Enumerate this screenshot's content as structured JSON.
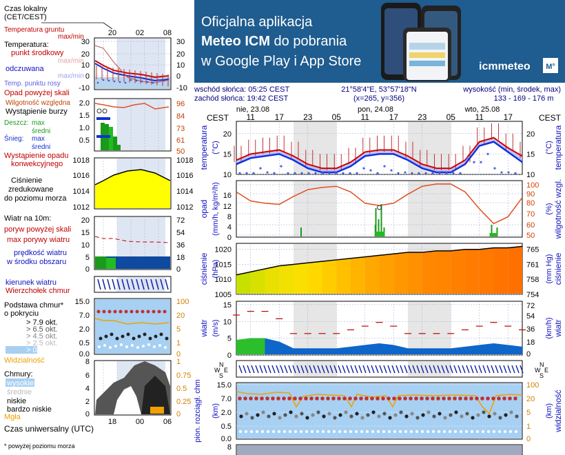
{
  "banner": {
    "line1": "Oficjalna aplikacja",
    "line2_bold": "Meteo ICM",
    "line2_rest": " do pobrania",
    "line3": "w Google Play i App Store",
    "logo": "icmmeteo",
    "logo_badge": "M°",
    "bg_color": "#1f5c8f"
  },
  "info": {
    "sunrise": "wschód słońca: 05:25 CEST",
    "sunset": "zachód słońca: 19:42 CEST",
    "coords": "21°58'4\"E, 53°57'18\"N",
    "grid": "(x=265, y=356)",
    "height_label": "wysokość (min, środek, max)",
    "height_values": "133 - 169 - 176 m"
  },
  "legend": {
    "local_time": "Czas lokalny (CET/CEST)",
    "local_ticks": [
      "20",
      "02",
      "08"
    ],
    "utc_ticks": [
      "18",
      "00",
      "06"
    ],
    "utc_label": "Czas uniwersalny (UTC)",
    "footnote": "* powyżej poziomu morza",
    "temp_ground": "Temperatura gruntu",
    "temp_ground_2": "max/min",
    "temp_title": "Temperatura:",
    "temp_mid": "punkt środkowy",
    "temp_mid_2": "max/min",
    "temp_feel": "odczuwana",
    "temp_feel_2": "max/min",
    "temp_dew": "Temp. punktu rosy",
    "temp_left_ticks": [
      "30",
      "20",
      "10",
      "0",
      "-10"
    ],
    "temp_right_ticks": [
      "30",
      "20",
      "10",
      "0",
      "-10"
    ],
    "precip_above": "Opad powyżej skali",
    "humidity": "Wilgotność względna",
    "storm": "Wystąpienie burzy",
    "rain": "Deszcz:",
    "rain_max": "max",
    "rain_mean": "średni",
    "snow": "Śnieg:",
    "snow_max": "max",
    "snow_mean": "średni",
    "convective": "Wystąpienie opadu",
    "convective_2": "konwekcyjnego",
    "precip_left_ticks": [
      "2.0",
      "1.5",
      "1.0",
      "0.5"
    ],
    "precip_right_ticks": [
      "96",
      "84",
      "73",
      "61",
      "50"
    ],
    "pressure_l1": "Ciśnienie",
    "pressure_l2": "zredukowane",
    "pressure_l3": "do poziomu morza",
    "pressure_left_ticks": [
      "1018",
      "1016",
      "1014",
      "1012"
    ],
    "pressure_right_ticks": [
      "1018",
      "1016",
      "1014",
      "1012"
    ],
    "wind_title": "Wiatr na 10m:",
    "gust_above": "poryw powyżej skali",
    "gust_max": "max porywy wiatru",
    "wind_speed": "prędkość wiatru",
    "wind_speed_2": "w środku obszaru",
    "wind_left_ticks": [
      "20",
      "15",
      "10",
      "5",
      "0"
    ],
    "wind_right_ticks": [
      "72",
      "54",
      "36",
      "18",
      "0"
    ],
    "wind_dir": "kierunek wiatru",
    "cloud_top": "Wierzchołek chmur",
    "cloud_base": "Podstawa chmur*",
    "cloud_base_2": "o pokryciu",
    "okt": [
      "> 7.9 okt.",
      "> 6.5 okt.",
      "> 4.5 okt.",
      "> 2.5 okt.",
      "> 0.1 okt."
    ],
    "cloudbase_left_ticks": [
      "15.0",
      "7.0",
      "2.0",
      "0.5",
      "0.0"
    ],
    "cloudbase_right_ticks": [
      "100",
      "20",
      "5",
      "1",
      "0"
    ],
    "visibility": "Widzialność",
    "clouds": "Chmury:",
    "cl_high": "wysokie",
    "cl_mid": "średnie",
    "cl_low": "niskie",
    "cl_vlow": "bardzo niskie",
    "fog": "Mgła",
    "clouds_left_ticks": [
      "8",
      "6",
      "4",
      "2",
      "0"
    ],
    "clouds_right_ticks": [
      "1",
      "0.75",
      "0.5",
      "0.25",
      "0"
    ]
  },
  "main": {
    "day_labels": [
      "nie, 23.08",
      "pon, 24.08",
      "wto, 25.08"
    ],
    "cest": "CEST",
    "hour_ticks": [
      "11",
      "17",
      "23",
      "05",
      "11",
      "17",
      "23",
      "05",
      "11",
      "17"
    ],
    "temp_ylabel": "temperatura",
    "temp_unit": "(°C)",
    "temp_ticks": [
      "20",
      "15",
      "10"
    ],
    "precip_ylabel": "opad",
    "precip_unit": "(mm/h, kg/m²/h)",
    "precip_ticks": [
      "16",
      "12",
      "8",
      "4",
      "0"
    ],
    "humid_ylabel": "wilgotność wzgl.",
    "humid_unit": "(%)",
    "humid_ticks": [
      "100",
      "90",
      "80",
      "70",
      "60",
      "50"
    ],
    "press_ylabel": "ciśnienie",
    "press_unit": "(hPa)",
    "press_ticks": [
      "1020",
      "1015",
      "1010",
      "1005"
    ],
    "press_right_unit": "(mm Hg)",
    "press_right_ticks": [
      "765",
      "761",
      "758",
      "754"
    ],
    "wind_ylabel": "wiatr",
    "wind_unit": "(m/s)",
    "wind_ticks": [
      "15",
      "10",
      "5",
      "0"
    ],
    "wind_right_unit": "(km/h)",
    "wind_right_ticks": [
      "72",
      "54",
      "36",
      "18",
      "0"
    ],
    "compass": [
      "N",
      "W",
      "E",
      "S"
    ],
    "cb_ylabel": "pion. rozciągł. chm",
    "cb_unit": "(km)",
    "cb_ticks": [
      "15.0",
      "7.0",
      "2.0",
      "0.5",
      "0.0"
    ],
    "vis_ylabel": "widzialność",
    "vis_unit": "(km)",
    "vis_ticks": [
      "100",
      "20",
      "5",
      "1",
      "0"
    ],
    "bottom_tick": "8"
  },
  "chart_data": {
    "type": "line",
    "x": [
      "23.08 08:00",
      "23.08 11:00",
      "23.08 14:00",
      "23.08 17:00",
      "23.08 20:00",
      "23.08 23:00",
      "24.08 02:00",
      "24.08 05:00",
      "24.08 08:00",
      "24.08 11:00",
      "24.08 14:00",
      "24.08 17:00",
      "24.08 20:00",
      "24.08 23:00",
      "25.08 02:00",
      "25.08 05:00",
      "25.08 08:00",
      "25.08 11:00",
      "25.08 14:00",
      "25.08 17:00",
      "25.08 20:00"
    ],
    "series": [
      {
        "name": "temperatura",
        "values": [
          13.5,
          15,
          15.5,
          16,
          14.5,
          12.5,
          11.5,
          11.5,
          13,
          15.5,
          16,
          16,
          14.5,
          12.5,
          11.5,
          11.5,
          13.5,
          18,
          19,
          16.5,
          14.5
        ]
      },
      {
        "name": "odczuwana",
        "values": [
          12.5,
          14,
          14.5,
          15,
          13.5,
          11.5,
          10.5,
          10.5,
          12,
          14.5,
          15,
          15,
          13.5,
          11.5,
          10.5,
          10.5,
          12.5,
          17,
          18,
          15.5,
          13
        ]
      },
      {
        "name": "ciśnienie",
        "values": [
          1011.5,
          1012.5,
          1013.5,
          1014.5,
          1015,
          1015.5,
          1016,
          1016.5,
          1017,
          1017.5,
          1018,
          1018.5,
          1019,
          1019,
          1019.5,
          1019.5,
          1020,
          1020,
          1020.5,
          1020.5,
          1021
        ]
      },
      {
        "name": "wilgotność wzgl.",
        "values": [
          90,
          82,
          80,
          79,
          86,
          92,
          94,
          95,
          90,
          80,
          78,
          80,
          88,
          95,
          97,
          97,
          90,
          75,
          62,
          68,
          85
        ]
      },
      {
        "name": "wiatr",
        "values": [
          4.5,
          5,
          5,
          4,
          2,
          2,
          2,
          2,
          2.5,
          3,
          3.5,
          3,
          2,
          2,
          2,
          2,
          2.5,
          3,
          3.5,
          3,
          2.5
        ]
      }
    ],
    "ylim_temperature": [
      10,
      23
    ],
    "ylim_pressure": [
      1005,
      1022
    ],
    "ylim_humidity": [
      50,
      100
    ],
    "ylim_wind": [
      0,
      16
    ]
  }
}
